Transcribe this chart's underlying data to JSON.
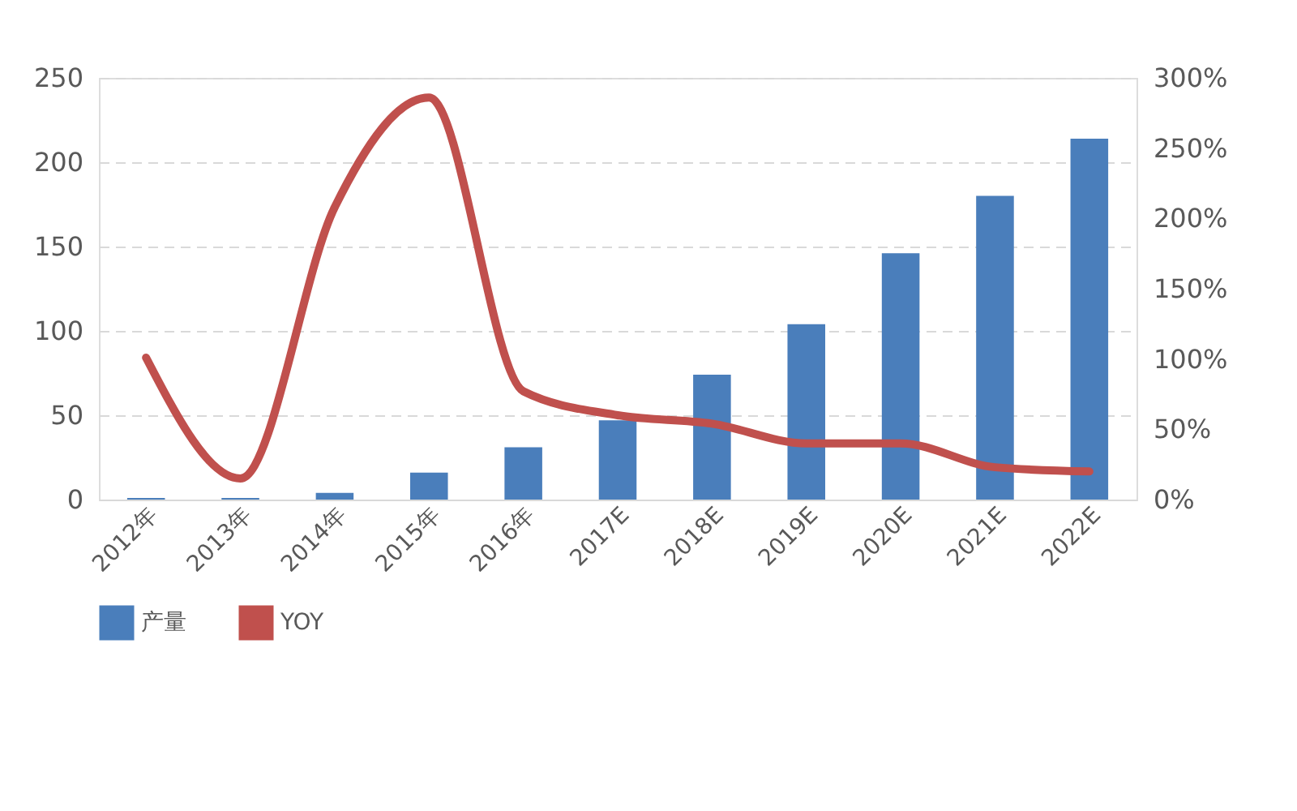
{
  "chart_data": {
    "type": "bar",
    "categories": [
      "2012年",
      "2013年",
      "2014年",
      "2015年",
      "2016年",
      "2017E",
      "2018E",
      "2019E",
      "2020E",
      "2021E",
      "2022E"
    ],
    "series": [
      {
        "name": "产量",
        "color": "#4a7ebb",
        "values": [
          1,
          1,
          4,
          16,
          31,
          47,
          74,
          104,
          146,
          180,
          214
        ]
      },
      {
        "name": "YOY",
        "type": "line",
        "axis": "y2",
        "color": "#c0504d",
        "values": [
          101,
          15,
          208,
          286,
          77,
          60,
          54,
          40,
          40,
          23,
          20
        ]
      }
    ],
    "ylim": [
      0,
      250
    ],
    "yticks": [
      0,
      50,
      100,
      150,
      200,
      250
    ],
    "y2lim": [
      0,
      300
    ],
    "y2ticks": [
      {
        "value": 0,
        "label": "0%"
      },
      {
        "value": 50,
        "label": "50%"
      },
      {
        "value": 100,
        "label": "100%"
      },
      {
        "value": 150,
        "label": "150%"
      },
      {
        "value": 200,
        "label": "200%"
      },
      {
        "value": 250,
        "label": "250%"
      },
      {
        "value": 300,
        "label": "300%"
      }
    ],
    "grid": "y",
    "legend": "bottom",
    "marker": "none",
    "line_style": "solid"
  }
}
